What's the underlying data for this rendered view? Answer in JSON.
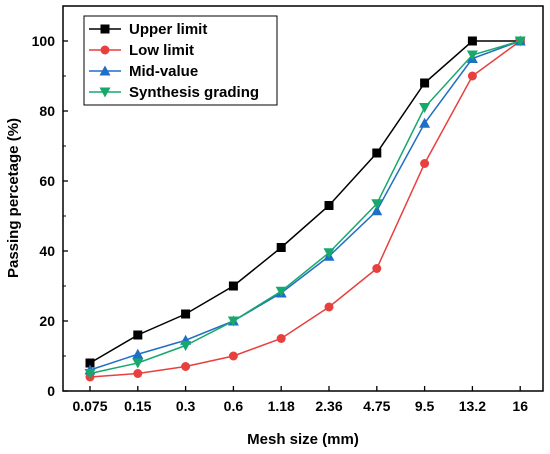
{
  "chart_data": {
    "type": "line",
    "title": "",
    "xlabel": "Mesh size (mm)",
    "ylabel": "Passing percetage (%)",
    "categories": [
      "0.075",
      "0.15",
      "0.3",
      "0.6",
      "1.18",
      "2.36",
      "4.75",
      "9.5",
      "13.2",
      "16"
    ],
    "yticks": [
      "0",
      "20",
      "40",
      "60",
      "80",
      "100"
    ],
    "ylim": [
      0,
      110
    ],
    "grid": false,
    "legend_position": "top-left",
    "series": [
      {
        "name": "Upper limit",
        "values": [
          8,
          16,
          22,
          30,
          41,
          53,
          68,
          88,
          100,
          100
        ],
        "color": "#000000",
        "marker": "square"
      },
      {
        "name": "Low limit",
        "values": [
          4,
          5,
          7,
          10,
          15,
          24,
          35,
          65,
          90,
          100
        ],
        "color": "#e8403f",
        "marker": "circle"
      },
      {
        "name": "Mid-value",
        "values": [
          6,
          10.5,
          14.5,
          20,
          28,
          38.5,
          51.5,
          76.5,
          95,
          100
        ],
        "color": "#1f6fc5",
        "marker": "triangle-up"
      },
      {
        "name": "Synthesis grading",
        "values": [
          5,
          8,
          13,
          20,
          28.5,
          39.5,
          53.5,
          81,
          96,
          100
        ],
        "color": "#17a86b",
        "marker": "triangle-down"
      }
    ]
  }
}
